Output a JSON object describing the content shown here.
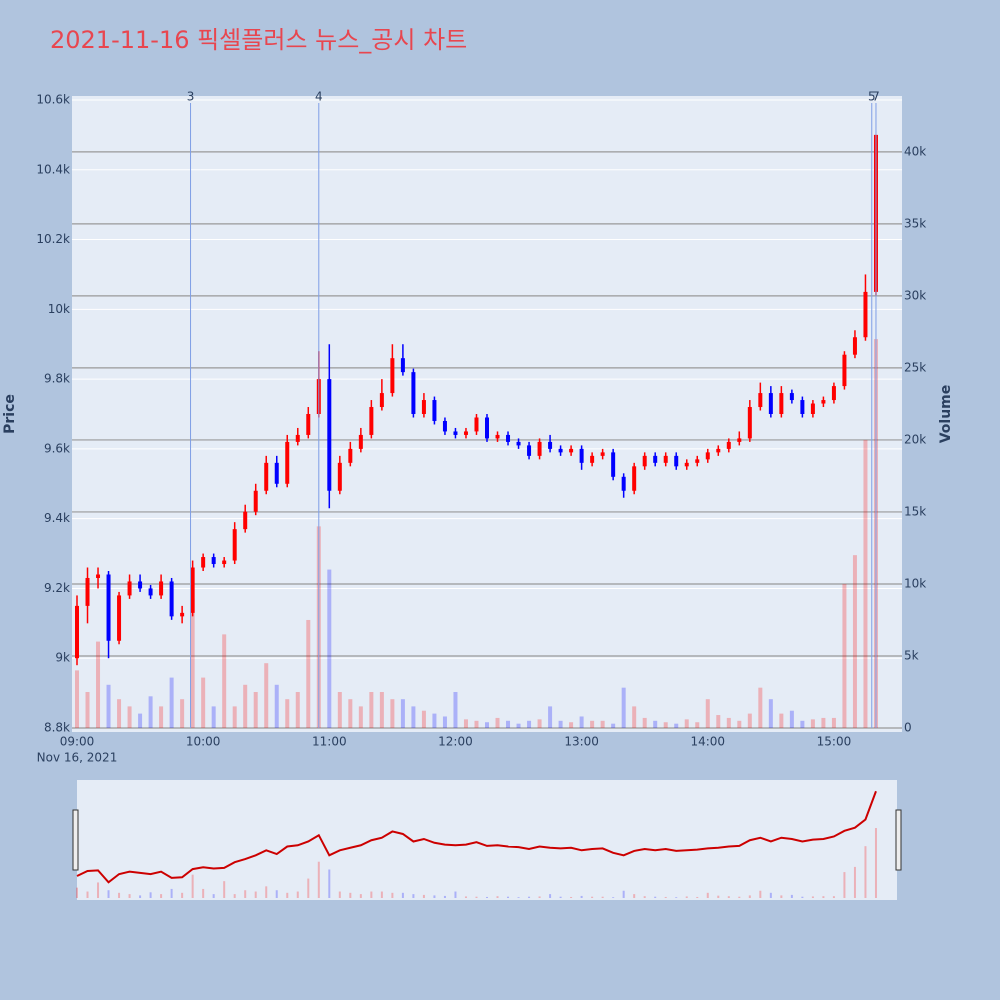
{
  "chart_data": {
    "type": "candlestick",
    "title": "2021-11-16 픽셀플러스 뉴스_공시 차트",
    "ylabel": "Price",
    "y2label": "Volume",
    "x_date_label": "Nov 16, 2021",
    "increasing_color": "#ff0000",
    "decreasing_color": "#0000ff",
    "marker_color": "#7f9ee6",
    "x": [
      "09:00",
      "09:05",
      "09:10",
      "09:15",
      "09:20",
      "09:25",
      "09:30",
      "09:35",
      "09:40",
      "09:45",
      "09:50",
      "09:55",
      "10:00",
      "10:05",
      "10:10",
      "10:15",
      "10:20",
      "10:25",
      "10:30",
      "10:35",
      "10:40",
      "10:45",
      "10:50",
      "10:55",
      "11:00",
      "11:05",
      "11:10",
      "11:15",
      "11:20",
      "11:25",
      "11:30",
      "11:35",
      "11:40",
      "11:45",
      "11:50",
      "11:55",
      "12:00",
      "12:05",
      "12:10",
      "12:15",
      "12:20",
      "12:25",
      "12:30",
      "12:35",
      "12:40",
      "12:45",
      "12:50",
      "12:55",
      "13:00",
      "13:05",
      "13:10",
      "13:15",
      "13:20",
      "13:25",
      "13:30",
      "13:35",
      "13:40",
      "13:45",
      "13:50",
      "13:55",
      "14:00",
      "14:05",
      "14:10",
      "14:15",
      "14:20",
      "14:25",
      "14:30",
      "14:35",
      "14:40",
      "14:45",
      "14:50",
      "14:55",
      "15:00",
      "15:05",
      "15:10",
      "15:15",
      "15:20"
    ],
    "open": [
      9000,
      9150,
      9230,
      9240,
      9050,
      9180,
      9220,
      9200,
      9180,
      9220,
      9120,
      9130,
      9260,
      9290,
      9270,
      9280,
      9370,
      9420,
      9480,
      9560,
      9500,
      9620,
      9640,
      9700,
      9800,
      9480,
      9560,
      9600,
      9640,
      9720,
      9760,
      9860,
      9820,
      9700,
      9740,
      9680,
      9650,
      9640,
      9650,
      9690,
      9630,
      9640,
      9620,
      9610,
      9580,
      9620,
      9600,
      9590,
      9600,
      9560,
      9580,
      9590,
      9520,
      9480,
      9550,
      9580,
      9560,
      9580,
      9550,
      9560,
      9570,
      9590,
      9600,
      9620,
      9630,
      9720,
      9760,
      9700,
      9760,
      9740,
      9700,
      9730,
      9740,
      9780,
      9870,
      9920,
      10050
    ],
    "high": [
      9180,
      9260,
      9260,
      9250,
      9190,
      9240,
      9240,
      9210,
      9240,
      9230,
      9150,
      9280,
      9300,
      9300,
      9290,
      9390,
      9440,
      9500,
      9580,
      9580,
      9640,
      9660,
      9720,
      9880,
      9900,
      9580,
      9620,
      9660,
      9740,
      9800,
      9900,
      9900,
      9830,
      9760,
      9750,
      9690,
      9660,
      9660,
      9700,
      9700,
      9650,
      9650,
      9630,
      9620,
      9630,
      9640,
      9610,
      9610,
      9610,
      9590,
      9600,
      9600,
      9530,
      9560,
      9590,
      9590,
      9590,
      9590,
      9570,
      9580,
      9600,
      9610,
      9630,
      9650,
      9740,
      9790,
      9780,
      9780,
      9770,
      9750,
      9740,
      9750,
      9790,
      9880,
      9940,
      10100,
      10500
    ],
    "low": [
      8980,
      9100,
      9200,
      9000,
      9040,
      9170,
      9190,
      9170,
      9170,
      9110,
      9100,
      9120,
      9250,
      9260,
      9260,
      9270,
      9360,
      9410,
      9470,
      9490,
      9490,
      9610,
      9630,
      9690,
      9430,
      9470,
      9550,
      9590,
      9630,
      9710,
      9750,
      9810,
      9690,
      9690,
      9670,
      9640,
      9630,
      9630,
      9640,
      9620,
      9620,
      9610,
      9600,
      9570,
      9570,
      9590,
      9580,
      9580,
      9540,
      9550,
      9570,
      9510,
      9460,
      9470,
      9540,
      9550,
      9550,
      9540,
      9540,
      9550,
      9560,
      9580,
      9590,
      9610,
      9620,
      9710,
      9690,
      9690,
      9730,
      9690,
      9690,
      9720,
      9730,
      9770,
      9860,
      9910,
      10040
    ],
    "close": [
      9150,
      9230,
      9240,
      9050,
      9180,
      9220,
      9200,
      9180,
      9220,
      9120,
      9130,
      9260,
      9290,
      9270,
      9280,
      9370,
      9420,
      9480,
      9560,
      9500,
      9620,
      9640,
      9700,
      9800,
      9480,
      9560,
      9600,
      9640,
      9720,
      9760,
      9860,
      9820,
      9700,
      9740,
      9680,
      9650,
      9640,
      9650,
      9690,
      9630,
      9640,
      9620,
      9610,
      9580,
      9620,
      9600,
      9590,
      9600,
      9560,
      9580,
      9590,
      9520,
      9480,
      9550,
      9580,
      9560,
      9580,
      9550,
      9560,
      9570,
      9590,
      9600,
      9620,
      9630,
      9720,
      9760,
      9700,
      9760,
      9740,
      9700,
      9730,
      9740,
      9780,
      9870,
      9920,
      10050,
      10500
    ],
    "volume": [
      4000,
      2500,
      6000,
      3000,
      2000,
      1500,
      1000,
      2200,
      1500,
      3500,
      2000,
      9000,
      3500,
      1500,
      6500,
      1500,
      3000,
      2500,
      4500,
      3000,
      2000,
      2500,
      7500,
      14000,
      11000,
      2500,
      2000,
      1500,
      2500,
      2500,
      2000,
      2000,
      1500,
      1200,
      1000,
      800,
      2500,
      600,
      500,
      400,
      700,
      500,
      300,
      500,
      600,
      1500,
      500,
      400,
      800,
      500,
      500,
      300,
      2800,
      1500,
      700,
      500,
      400,
      300,
      600,
      400,
      2000,
      900,
      700,
      500,
      1000,
      2800,
      2000,
      1000,
      1200,
      500,
      600,
      700,
      700,
      10000,
      12000,
      20000,
      27000
    ],
    "markers": [
      {
        "x": "09:54",
        "label": "3"
      },
      {
        "x": "10:55",
        "label": "4"
      },
      {
        "x": "15:18",
        "label": "5"
      },
      {
        "x": "15:20",
        "label": "7"
      }
    ],
    "xlim": [
      "09:00",
      "15:30"
    ],
    "xticks": [
      "09:00",
      "10:00",
      "11:00",
      "12:00",
      "13:00",
      "14:00",
      "15:00"
    ],
    "ylim": [
      8800,
      10600
    ],
    "yticks": [
      {
        "value": 8800,
        "label": "8.8k"
      },
      {
        "value": 9000,
        "label": "9k"
      },
      {
        "value": 9200,
        "label": "9.2k"
      },
      {
        "value": 9400,
        "label": "9.4k"
      },
      {
        "value": 9600,
        "label": "9.6k"
      },
      {
        "value": 9800,
        "label": "9.8k"
      },
      {
        "value": 10000,
        "label": "10k"
      },
      {
        "value": 10200,
        "label": "10.2k"
      },
      {
        "value": 10400,
        "label": "10.4k"
      },
      {
        "value": 10600,
        "label": "10.6k"
      }
    ],
    "y2lim": [
      0,
      43600
    ],
    "y2ticks": [
      0,
      {
        "value": 5000,
        "label": "5k"
      },
      {
        "value": 10000,
        "label": "10k"
      },
      {
        "value": 15000,
        "label": "15k"
      },
      {
        "value": 20000,
        "label": "20k"
      },
      {
        "value": 25000,
        "label": "25k"
      },
      {
        "value": 30000,
        "label": "30k"
      },
      {
        "value": 35000,
        "label": "35k"
      },
      {
        "value": 40000,
        "label": "40k"
      }
    ]
  }
}
